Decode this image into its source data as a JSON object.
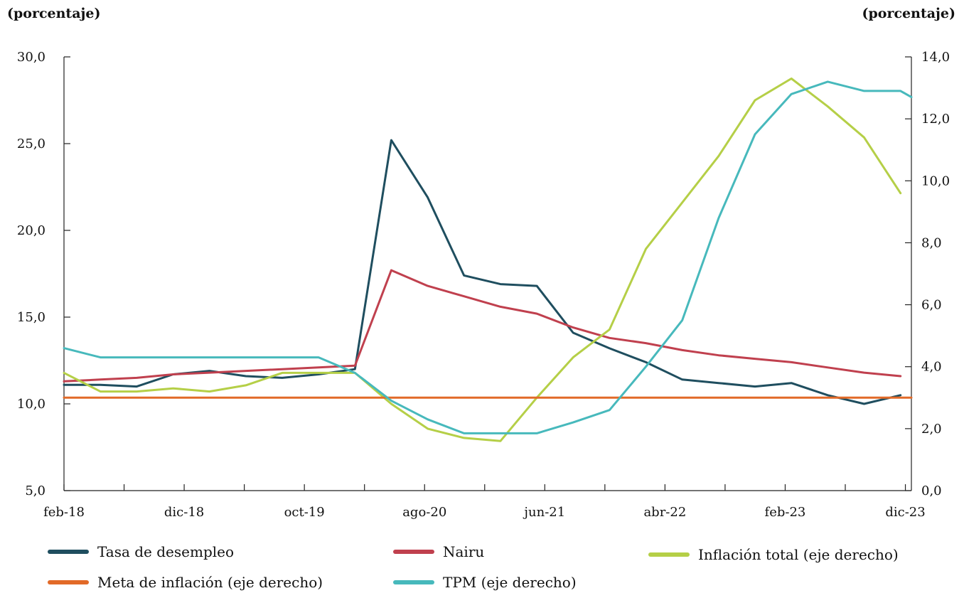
{
  "chart_data": {
    "type": "line",
    "left_unit": "(porcentaje)",
    "right_unit": "(porcentaje)",
    "x_tick_labels": [
      "feb-18",
      "dic-18",
      "oct-19",
      "ago-20",
      "jun-21",
      "abr-22",
      "feb-23",
      "dic-23"
    ],
    "x_tick_positions": [
      0,
      4,
      8,
      12,
      16,
      20,
      24,
      28
    ],
    "x_minor_ticks": [
      2,
      6,
      10,
      14,
      18,
      22,
      26
    ],
    "x_range": [
      0,
      28.2
    ],
    "y_left": {
      "range": [
        5,
        30
      ],
      "ticks": [
        "5,0",
        "10,0",
        "15,0",
        "20,0",
        "25,0",
        "30,0"
      ],
      "tick_values": [
        5,
        10,
        15,
        20,
        25,
        30
      ]
    },
    "y_right": {
      "range": [
        0,
        14
      ],
      "ticks": [
        "0,0",
        "2,0",
        "4,0",
        "6,0",
        "8,0",
        "10,0",
        "12,0",
        "14,0"
      ],
      "tick_values": [
        0,
        2,
        4,
        6,
        8,
        10,
        12,
        14
      ]
    },
    "grid": false,
    "series": [
      {
        "name": "Tasa de desempleo",
        "axis": "left",
        "color": "#1f4e5f",
        "points": [
          [
            0,
            11.1
          ],
          [
            1,
            11.1
          ],
          [
            2,
            11.0
          ],
          [
            3,
            11.7
          ],
          [
            4,
            11.9
          ],
          [
            5,
            11.6
          ],
          [
            6,
            11.5
          ],
          [
            7,
            11.7
          ],
          [
            8,
            12.0
          ],
          [
            9,
            25.2
          ],
          [
            10,
            21.9
          ],
          [
            11,
            17.4
          ],
          [
            12,
            16.9
          ],
          [
            13,
            16.8
          ],
          [
            14,
            14.1
          ],
          [
            15,
            13.2
          ],
          [
            16,
            12.4
          ],
          [
            17,
            11.4
          ],
          [
            18,
            11.2
          ],
          [
            19,
            11.0
          ],
          [
            20,
            11.2
          ],
          [
            21,
            10.5
          ],
          [
            22,
            10.0
          ],
          [
            23,
            10.5
          ]
        ]
      },
      {
        "name": "Nairu",
        "axis": "left",
        "color": "#c0404e",
        "points": [
          [
            0,
            11.3
          ],
          [
            1,
            11.4
          ],
          [
            2,
            11.5
          ],
          [
            3,
            11.7
          ],
          [
            4,
            11.8
          ],
          [
            5,
            11.9
          ],
          [
            6,
            12.0
          ],
          [
            7,
            12.1
          ],
          [
            8,
            12.2
          ],
          [
            9,
            17.7
          ],
          [
            10,
            16.8
          ],
          [
            11,
            16.2
          ],
          [
            12,
            15.6
          ],
          [
            13,
            15.2
          ],
          [
            14,
            14.4
          ],
          [
            15,
            13.8
          ],
          [
            16,
            13.5
          ],
          [
            17,
            13.1
          ],
          [
            18,
            12.8
          ],
          [
            19,
            12.6
          ],
          [
            20,
            12.4
          ],
          [
            21,
            12.1
          ],
          [
            22,
            11.8
          ],
          [
            23,
            11.6
          ]
        ]
      },
      {
        "name": "Inflación total (eje derecho)",
        "axis": "right",
        "color": "#b5cf47",
        "points": [
          [
            0,
            3.8
          ],
          [
            1,
            3.2
          ],
          [
            2,
            3.2
          ],
          [
            3,
            3.3
          ],
          [
            4,
            3.2
          ],
          [
            5,
            3.4
          ],
          [
            6,
            3.8
          ],
          [
            7,
            3.8
          ],
          [
            8,
            3.8
          ],
          [
            9,
            2.8
          ],
          [
            10,
            2.0
          ],
          [
            11,
            1.7
          ],
          [
            12,
            1.6
          ],
          [
            13,
            3.0
          ],
          [
            14,
            4.3
          ],
          [
            15,
            5.2
          ],
          [
            16,
            7.8
          ],
          [
            17,
            9.3
          ],
          [
            18,
            10.8
          ],
          [
            19,
            12.6
          ],
          [
            20,
            13.3
          ],
          [
            21,
            12.4
          ],
          [
            22,
            11.4
          ],
          [
            23,
            9.6
          ]
        ]
      },
      {
        "name": "Meta de inflación (eje derecho)",
        "axis": "right",
        "color": "#e26a28",
        "points": [
          [
            0,
            3.0
          ],
          [
            28.2,
            3.0
          ]
        ]
      },
      {
        "name": "TPM (eje derecho)",
        "axis": "right",
        "color": "#47b9bc",
        "points": [
          [
            0,
            4.6
          ],
          [
            1,
            4.3
          ],
          [
            2,
            4.3
          ],
          [
            3,
            4.3
          ],
          [
            4,
            4.3
          ],
          [
            5,
            4.3
          ],
          [
            6,
            4.3
          ],
          [
            7,
            4.3
          ],
          [
            8,
            3.8
          ],
          [
            9,
            2.9
          ],
          [
            10,
            2.3
          ],
          [
            11,
            1.85
          ],
          [
            12,
            1.85
          ],
          [
            13,
            1.85
          ],
          [
            14,
            2.2
          ],
          [
            15,
            2.6
          ],
          [
            16,
            4.0
          ],
          [
            17,
            5.5
          ],
          [
            18,
            8.8
          ],
          [
            19,
            11.5
          ],
          [
            20,
            12.8
          ],
          [
            21,
            13.2
          ],
          [
            22,
            12.9
          ],
          [
            23,
            12.9
          ],
          [
            23.3,
            12.7
          ]
        ]
      }
    ]
  },
  "legend": {
    "items": [
      {
        "label": "Tasa de desempleo",
        "color": "#1f4e5f"
      },
      {
        "label": "Nairu",
        "color": "#c0404e"
      },
      {
        "label": "Inflación total (eje derecho)",
        "color": "#b5cf47"
      },
      {
        "label": "Meta de inflación (eje derecho)",
        "color": "#e26a28"
      },
      {
        "label": "TPM (eje derecho)",
        "color": "#47b9bc"
      }
    ]
  }
}
